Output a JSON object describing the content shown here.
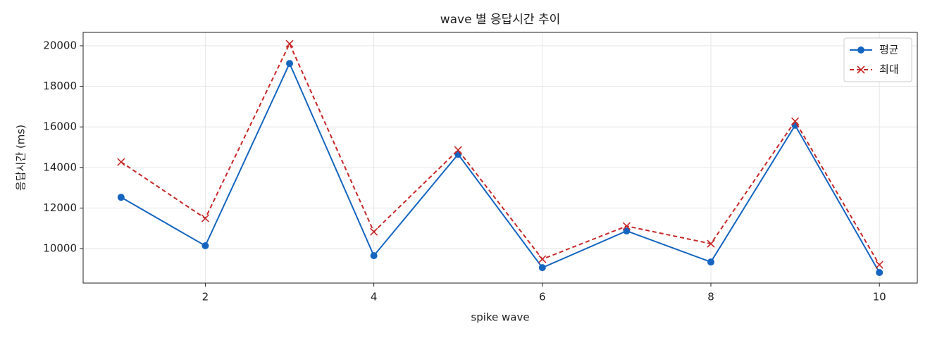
{
  "chart_data": {
    "type": "line",
    "title": "wave 별 응답시간 추이",
    "xlabel": "spike wave",
    "ylabel": "응답시간 (ms)",
    "x": [
      1,
      2,
      3,
      4,
      5,
      6,
      7,
      8,
      9,
      10
    ],
    "series": [
      {
        "name": "평균",
        "color": "#1565c0",
        "marker": "o",
        "linestyle": "solid",
        "values": [
          12530,
          10140,
          19130,
          9650,
          14650,
          9060,
          10870,
          9340,
          16080,
          8820
        ]
      },
      {
        "name": "최대",
        "color": "#c62828",
        "marker": "x",
        "linestyle": "dashed",
        "values": [
          14270,
          11490,
          20100,
          10830,
          14860,
          9480,
          11110,
          10240,
          16280,
          9200
        ]
      }
    ],
    "xlim": [
      0.55,
      10.45
    ],
    "xticks": [
      2,
      4,
      6,
      8,
      10
    ],
    "ylim": [
      8300,
      20660
    ],
    "yticks": [
      10000,
      12000,
      14000,
      16000,
      18000,
      20000
    ],
    "grid": true,
    "legend": "upper right"
  }
}
